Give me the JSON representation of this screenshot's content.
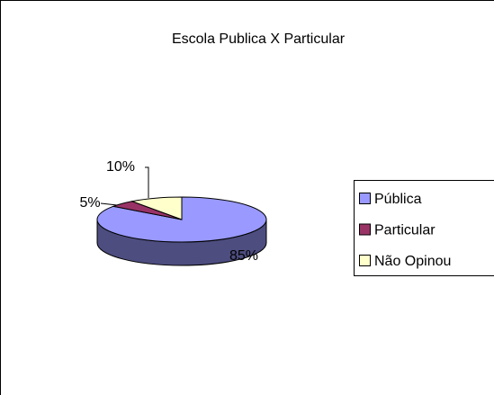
{
  "chart_data": {
    "type": "pie",
    "title": "Escola Publica X Particular",
    "categories": [
      "Pública",
      "Particular",
      "Não Opinou"
    ],
    "values": [
      85,
      5,
      10
    ],
    "value_labels": [
      "85%",
      "5%",
      "10%"
    ],
    "colors": [
      "#9999ff",
      "#993366",
      "#ffffcc"
    ],
    "legend": "right"
  }
}
